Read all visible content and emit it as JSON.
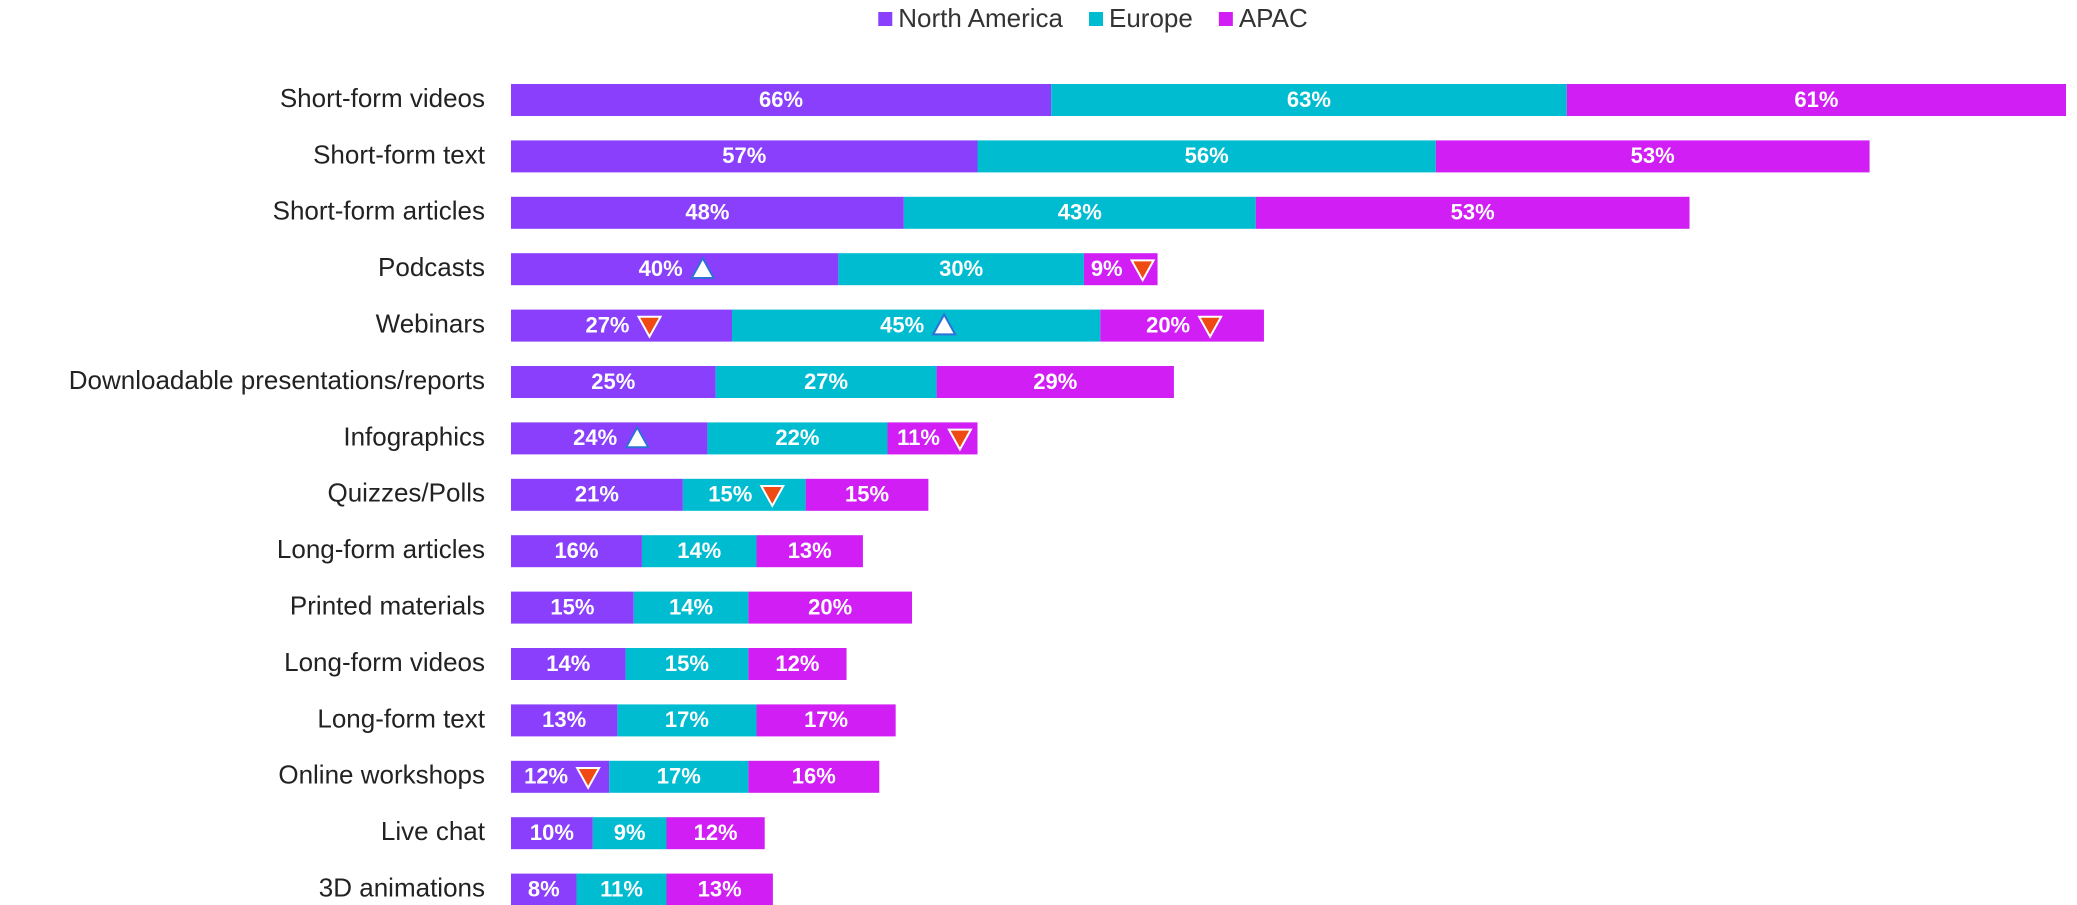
{
  "chart_data": {
    "type": "stacked-bar-horizontal",
    "categories": [
      "Short-form videos",
      "Short-form text",
      "Short-form articles",
      "Podcasts",
      "Webinars",
      "Downloadable presentations/reports",
      "Infographics",
      "Quizzes/Polls",
      "Long-form articles",
      "Printed materials",
      "Long-form videos",
      "Long-form text",
      "Online workshops",
      "Live chat",
      "3D animations"
    ],
    "series": [
      {
        "name": "North America",
        "color": "#8a3ffc",
        "values": [
          66,
          57,
          48,
          40,
          27,
          25,
          24,
          21,
          16,
          15,
          14,
          13,
          12,
          10,
          8
        ],
        "value_labels": [
          "66%",
          "57%",
          "48%",
          "40%",
          "27%",
          "25%",
          "24%",
          "21%",
          "16%",
          "15%",
          "14%",
          "13%",
          "12%",
          "10%",
          "8%"
        ],
        "markers": [
          null,
          null,
          null,
          "up",
          "down",
          null,
          "up",
          null,
          null,
          null,
          null,
          null,
          "down",
          null,
          null
        ]
      },
      {
        "name": "Europe",
        "color": "#00bcd0",
        "values": [
          63,
          56,
          43,
          30,
          45,
          27,
          22,
          15,
          14,
          14,
          15,
          17,
          17,
          9,
          11
        ],
        "value_labels": [
          "63%",
          "56%",
          "43%",
          "30%",
          "45%",
          "27%",
          "22%",
          "15%",
          "14%",
          "14%",
          "15%",
          "17%",
          "17%",
          "9%",
          "11%"
        ],
        "markers": [
          null,
          null,
          null,
          null,
          "up",
          null,
          null,
          "down",
          null,
          null,
          null,
          null,
          null,
          null,
          null
        ]
      },
      {
        "name": "APAC",
        "color": "#d01ef5",
        "values": [
          61,
          53,
          53,
          9,
          20,
          29,
          11,
          15,
          13,
          20,
          12,
          17,
          16,
          12,
          13
        ],
        "value_labels": [
          "61%",
          "53%",
          "53%",
          "9%",
          "20%",
          "29%",
          "11%",
          "15%",
          "13%",
          "20%",
          "12%",
          "17%",
          "16%",
          "12%",
          "13%"
        ],
        "markers": [
          null,
          null,
          null,
          "down",
          "down",
          null,
          "down",
          null,
          null,
          null,
          null,
          null,
          null,
          null,
          null
        ]
      }
    ],
    "legend": "top"
  }
}
